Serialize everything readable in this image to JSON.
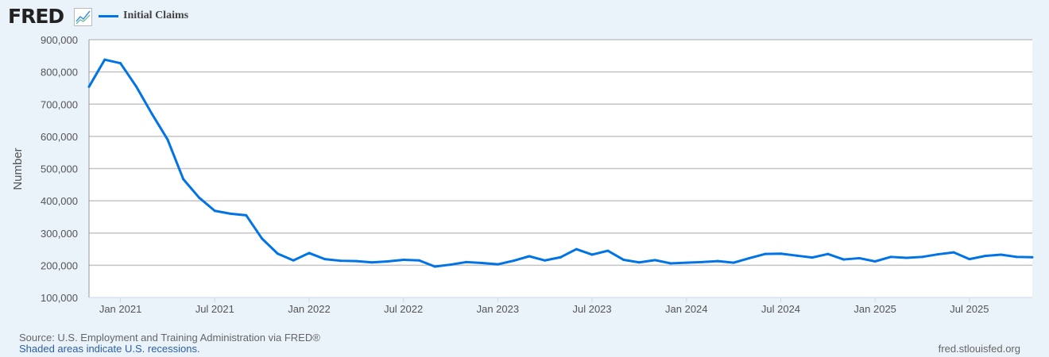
{
  "header": {
    "logo": "FRED",
    "legend_label": "Initial Claims",
    "series_color": "#0073e6"
  },
  "footer": {
    "source": "Source: U.S. Employment and Training Administration via FRED®",
    "recessions": "Shaded areas indicate U.S. recessions.",
    "url": "fred.stlouisfed.org"
  },
  "chart_data": {
    "type": "line",
    "title": "",
    "xlabel": "",
    "ylabel": "Number",
    "ylim": [
      100000,
      900000
    ],
    "yticks": [
      100000,
      200000,
      300000,
      400000,
      500000,
      600000,
      700000,
      800000,
      900000
    ],
    "ytick_labels": [
      "100,000",
      "200,000",
      "300,000",
      "400,000",
      "500,000",
      "600,000",
      "700,000",
      "800,000",
      "900,000"
    ],
    "xrange": [
      "2020-11",
      "2025-11"
    ],
    "xticks": [
      "2021-01",
      "2021-07",
      "2022-01",
      "2022-07",
      "2023-01",
      "2023-07",
      "2024-01",
      "2024-07",
      "2025-01",
      "2025-07"
    ],
    "xtick_labels": [
      "Jan 2021",
      "Jul 2021",
      "Jan 2022",
      "Jul 2022",
      "Jan 2023",
      "Jul 2023",
      "Jan 2024",
      "Jul 2024",
      "Jan 2025",
      "Jul 2025"
    ],
    "grid": true,
    "legend_placement": "top-left",
    "series": [
      {
        "name": "Initial Claims",
        "color": "#0073e6",
        "x": [
          "2020-11",
          "2020-12",
          "2021-01",
          "2021-02",
          "2021-03",
          "2021-04",
          "2021-05",
          "2021-06",
          "2021-07",
          "2021-08",
          "2021-09",
          "2021-10",
          "2021-11",
          "2021-12",
          "2022-01",
          "2022-02",
          "2022-03",
          "2022-04",
          "2022-05",
          "2022-06",
          "2022-07",
          "2022-08",
          "2022-09",
          "2022-10",
          "2022-11",
          "2022-12",
          "2023-01",
          "2023-02",
          "2023-03",
          "2023-04",
          "2023-05",
          "2023-06",
          "2023-07",
          "2023-08",
          "2023-09",
          "2023-10",
          "2023-11",
          "2023-12",
          "2024-01",
          "2024-02",
          "2024-03",
          "2024-04",
          "2024-05",
          "2024-06",
          "2024-07",
          "2024-08",
          "2024-09",
          "2024-10",
          "2024-11",
          "2024-12",
          "2025-01",
          "2025-02",
          "2025-03",
          "2025-04",
          "2025-05",
          "2025-06",
          "2025-07",
          "2025-08",
          "2025-09",
          "2025-10",
          "2025-11"
        ],
        "values": [
          754000,
          838000,
          827000,
          755000,
          670000,
          590000,
          467000,
          410000,
          369000,
          360000,
          355000,
          283000,
          236000,
          215000,
          238000,
          219000,
          214000,
          213000,
          209000,
          212000,
          217000,
          215000,
          196000,
          202000,
          210000,
          207000,
          203000,
          214000,
          228000,
          215000,
          225000,
          250000,
          233000,
          245000,
          217000,
          209000,
          216000,
          206000,
          208000,
          210000,
          213000,
          208000,
          222000,
          235000,
          236000,
          230000,
          224000,
          235000,
          218000,
          222000,
          212000,
          226000,
          223000,
          226000,
          234000,
          240000,
          219000,
          229000,
          233000,
          226000,
          225000
        ]
      }
    ]
  }
}
